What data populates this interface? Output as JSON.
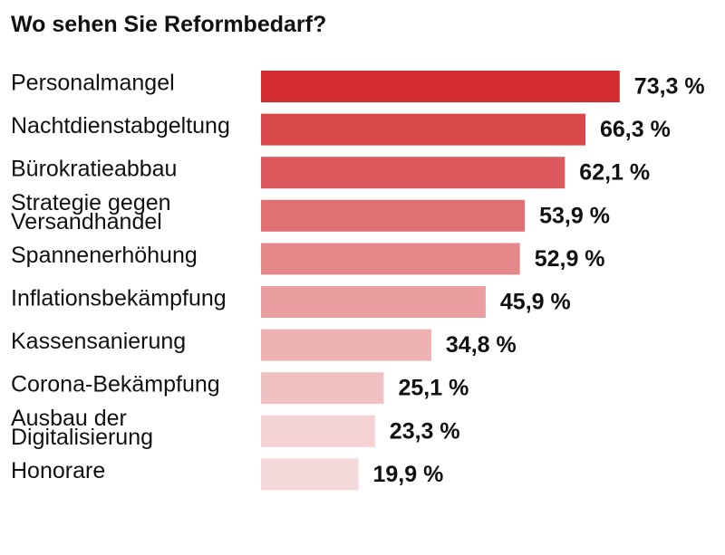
{
  "chart_data": {
    "type": "bar",
    "orientation": "horizontal",
    "title": "Wo sehen Sie Reformbedarf?",
    "categories": [
      [
        "Personalmangel"
      ],
      [
        "Nachtdienstabgeltung"
      ],
      [
        "Bürokratieabbau"
      ],
      [
        "Strategie gegen",
        "Versandhandel"
      ],
      [
        "Spannenerhöhung"
      ],
      [
        "Inflationsbekämpfung"
      ],
      [
        "Kassensanierung"
      ],
      [
        "Corona-Bekämpfung"
      ],
      [
        "Ausbau der",
        "Digitalisierung"
      ],
      [
        "Honorare"
      ]
    ],
    "values": [
      73.3,
      66.3,
      62.1,
      53.9,
      52.9,
      45.9,
      34.8,
      25.1,
      23.3,
      19.9
    ],
    "value_labels": [
      "73,3 %",
      "66,3 %",
      "62,1 %",
      "53,9 %",
      "52,9 %",
      "45,9 %",
      "34,8 %",
      "25,1 %",
      "23,3 %",
      "19,9 %"
    ],
    "bar_colors": [
      "#d32d32",
      "#d8474a",
      "#dc5a5d",
      "#e07072",
      "#e5888a",
      "#ea9ea0",
      "#edb1b2",
      "#f0c1c2",
      "#f4d2d3",
      "#f5d8d9"
    ],
    "unit": "%",
    "xlim": [
      0,
      100
    ],
    "grid": false,
    "legend": "none",
    "xlabel": "",
    "ylabel": ""
  }
}
